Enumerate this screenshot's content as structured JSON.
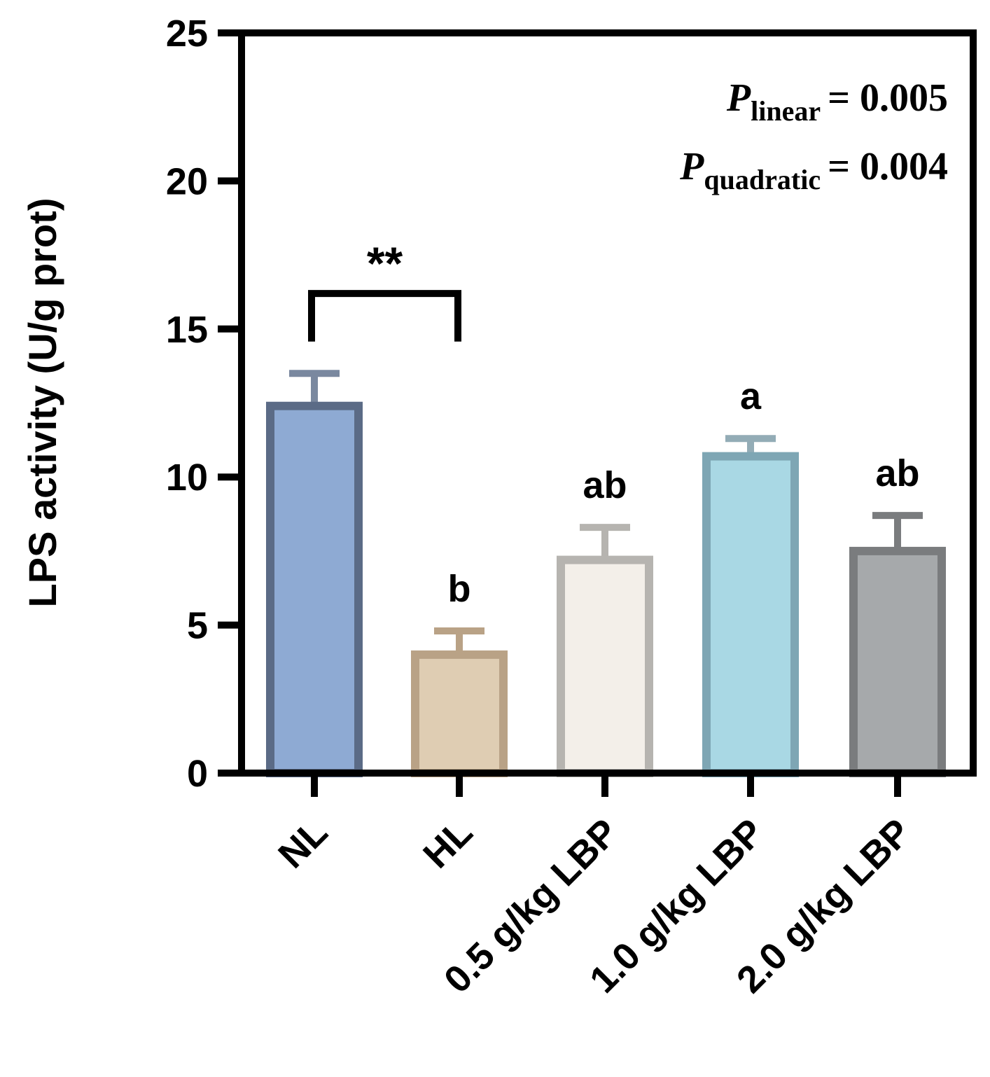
{
  "chart_data": {
    "type": "bar",
    "title": "",
    "xlabel": "",
    "ylabel": "LPS activity (U/g prot)",
    "ylim": [
      0,
      25
    ],
    "yticks": [
      0,
      5,
      10,
      15,
      20,
      25
    ],
    "categories": [
      "NL",
      "HL",
      "0.5 g/kg LBP",
      "1.0 g/kg LBP",
      "2.0 g/kg LBP"
    ],
    "values": [
      12.4,
      4.0,
      7.2,
      10.7,
      7.5
    ],
    "errors": [
      1.1,
      0.8,
      1.1,
      0.6,
      1.2
    ],
    "significance_letters": [
      "",
      "b",
      "ab",
      "a",
      "ab"
    ],
    "bracket": {
      "from": "NL",
      "to": "HL",
      "label": "**"
    },
    "stats": [
      {
        "symbol": "P",
        "subscript": "linear",
        "value": "= 0.005"
      },
      {
        "symbol": "P",
        "subscript": "quadratic",
        "value": "= 0.004"
      }
    ],
    "colors": {
      "fills": [
        "#8eaad3",
        "#dfcdb3",
        "#f3efe9",
        "#a9d8e4",
        "#a6a9ab"
      ],
      "strokes": [
        "#5b6b86",
        "#b9a286",
        "#b6b4b0",
        "#7ea6b4",
        "#7a7c7e"
      ],
      "errorbars": [
        "#7a889f",
        "#b9a286",
        "#b6b4b0",
        "#93acb6",
        "#7a7c7e"
      ],
      "axis": "#000000"
    }
  }
}
